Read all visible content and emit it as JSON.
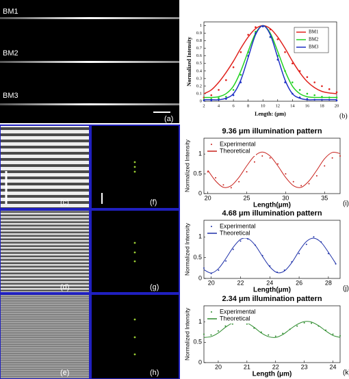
{
  "image_panels": [
    {
      "label": "(a)",
      "texts": [
        "BM1",
        "BM2",
        "BM3"
      ]
    },
    {
      "label": "(c)"
    },
    {
      "label": "(d)"
    },
    {
      "label": "(e)"
    },
    {
      "label": "(f)"
    },
    {
      "label": "(g)"
    },
    {
      "label": "(h)"
    }
  ],
  "chart_data": [
    {
      "type": "line",
      "panel_label": "(b)",
      "xlabel": "Length: (μm)",
      "ylabel": "Normalized Intensity",
      "x": [
        2,
        3,
        4,
        5,
        6,
        7,
        8,
        9,
        10,
        11,
        12,
        13,
        14,
        15,
        16,
        17,
        18,
        19,
        20
      ],
      "xlim": [
        2,
        20
      ],
      "xticks": [
        2,
        4,
        6,
        8,
        10,
        12,
        14,
        16,
        18,
        20
      ],
      "ylim": [
        0,
        1.05
      ],
      "yticks": [
        0,
        0.1,
        0.2,
        0.3,
        0.4,
        0.5,
        0.6,
        0.7,
        0.8,
        0.9,
        1
      ],
      "legend": "upper right",
      "series": [
        {
          "name": "BM1",
          "color": "#e0201b",
          "values": [
            0.1,
            0.15,
            0.25,
            0.38,
            0.53,
            0.7,
            0.85,
            0.96,
            1,
            0.96,
            0.85,
            0.7,
            0.53,
            0.38,
            0.26,
            0.18,
            0.13,
            0.11,
            0.1
          ],
          "points": [
            0.05,
            0.08,
            0.15,
            0.28,
            0.45,
            0.65,
            0.88,
            0.98,
            0.99,
            0.95,
            0.82,
            0.65,
            0.5,
            0.4,
            0.32,
            0.25,
            0.2,
            0.16,
            0.12
          ]
        },
        {
          "name": "BM2",
          "color": "#1fd11f",
          "values": [
            0.05,
            0.05,
            0.06,
            0.1,
            0.2,
            0.4,
            0.66,
            0.9,
            1,
            0.9,
            0.66,
            0.4,
            0.2,
            0.1,
            0.06,
            0.05,
            0.05,
            0.05,
            0.05
          ],
          "points": [
            0.02,
            0.03,
            0.04,
            0.06,
            0.15,
            0.35,
            0.65,
            0.92,
            0.99,
            0.85,
            0.6,
            0.4,
            0.25,
            0.15,
            0.1,
            0.08,
            0.06,
            0.05,
            0.05
          ]
        },
        {
          "name": "BM3",
          "color": "#1c2fc4",
          "values": [
            0.02,
            0.02,
            0.02,
            0.04,
            0.1,
            0.28,
            0.58,
            0.88,
            1,
            0.88,
            0.58,
            0.28,
            0.1,
            0.04,
            0.02,
            0.02,
            0.02,
            0.02,
            0.02
          ],
          "points": [
            0.01,
            0.01,
            0.02,
            0.03,
            0.08,
            0.25,
            0.6,
            0.9,
            0.99,
            0.85,
            0.55,
            0.25,
            0.1,
            0.05,
            0.03,
            0.02,
            0.02,
            0.02,
            0.01
          ]
        }
      ]
    },
    {
      "type": "line",
      "title": "9.36 μm illumination pattern",
      "panel_label": "(i)",
      "xlabel": "Length(μm)",
      "ylabel": "Normalized Intensity",
      "x": [
        20,
        21,
        22,
        23,
        24,
        25,
        26,
        27,
        28,
        29,
        30,
        31,
        32,
        33,
        34,
        35,
        36,
        37
      ],
      "xlim": [
        19.5,
        37
      ],
      "xticks": [
        20,
        25,
        30,
        35
      ],
      "ylim": [
        0,
        1.4
      ],
      "yticks": [
        0,
        0.5,
        1
      ],
      "legend": "upper left",
      "series": [
        {
          "name": "Experimental",
          "color": "#c8201b",
          "style": "dots",
          "values": [
            0.55,
            0.4,
            0.22,
            0.15,
            0.3,
            0.55,
            0.8,
            0.95,
            0.9,
            0.75,
            0.5,
            0.3,
            0.2,
            0.25,
            0.45,
            0.7,
            0.9,
            0.95
          ]
        },
        {
          "name": "Theoretical",
          "color": "#c8201b",
          "style": "line",
          "values": [
            0.59,
            0.32,
            0.16,
            0.2,
            0.41,
            0.7,
            0.95,
            1.05,
            0.95,
            0.7,
            0.41,
            0.2,
            0.16,
            0.32,
            0.59,
            0.88,
            1.04,
            1.01
          ]
        }
      ]
    },
    {
      "type": "line",
      "title": "4.68 μm illumination pattern",
      "panel_label": "(j)",
      "xlabel": "Length(μm)",
      "ylabel": "Normalized Intensity",
      "x": [
        19.5,
        20,
        20.5,
        21,
        21.5,
        22,
        22.5,
        23,
        23.5,
        24,
        24.5,
        25,
        25.5,
        26,
        26.5,
        27,
        27.5,
        28,
        28.5
      ],
      "xlim": [
        19.5,
        28.8
      ],
      "xticks": [
        20,
        22,
        24,
        26,
        28
      ],
      "ylim": [
        0,
        1.4
      ],
      "yticks": [
        0,
        0.5,
        1
      ],
      "legend": "upper left",
      "series": [
        {
          "name": "Experimental",
          "color": "#1c2fa8",
          "style": "dots",
          "values": [
            0.25,
            0.12,
            0.2,
            0.42,
            0.7,
            0.9,
            0.95,
            0.8,
            0.55,
            0.3,
            0.15,
            0.2,
            0.4,
            0.6,
            0.82,
            1.0,
            0.88,
            0.6,
            0.35
          ]
        },
        {
          "name": "Theoretical",
          "color": "#1c2fa8",
          "style": "line",
          "values": [
            0.21,
            0.13,
            0.24,
            0.48,
            0.75,
            0.94,
            0.96,
            0.8,
            0.53,
            0.28,
            0.14,
            0.18,
            0.38,
            0.66,
            0.89,
            0.97,
            0.87,
            0.63,
            0.36
          ]
        }
      ]
    },
    {
      "type": "line",
      "title": "2.34 μm illumination pattern",
      "panel_label": "(k)",
      "xlabel": "Length (μm)",
      "ylabel": "Normalized Intensity",
      "x": [
        19.5,
        19.75,
        20,
        20.25,
        20.5,
        20.75,
        21,
        21.25,
        21.5,
        21.75,
        22,
        22.25,
        22.5,
        22.75,
        23,
        23.25,
        23.5,
        23.75,
        24,
        24.25
      ],
      "xlim": [
        19.5,
        24.25
      ],
      "xticks": [
        20,
        21,
        22,
        23,
        24
      ],
      "ylim": [
        0,
        1.4
      ],
      "yticks": [
        0,
        0.5,
        1
      ],
      "legend": "upper left",
      "series": [
        {
          "name": "Experimental",
          "color": "#2a8a2a",
          "style": "dots",
          "values": [
            0.7,
            0.68,
            0.78,
            0.9,
            0.95,
            1.0,
            0.95,
            0.85,
            0.75,
            0.68,
            0.65,
            0.72,
            0.82,
            0.9,
            0.98,
            0.97,
            0.9,
            0.8,
            0.7,
            0.66
          ]
        },
        {
          "name": "Theoretical",
          "color": "#2a8a2a",
          "style": "line",
          "values": [
            0.62,
            0.64,
            0.73,
            0.87,
            0.98,
            1.02,
            0.98,
            0.87,
            0.73,
            0.64,
            0.62,
            0.69,
            0.82,
            0.94,
            1.01,
            1.0,
            0.91,
            0.78,
            0.67,
            0.62
          ]
        }
      ]
    }
  ]
}
